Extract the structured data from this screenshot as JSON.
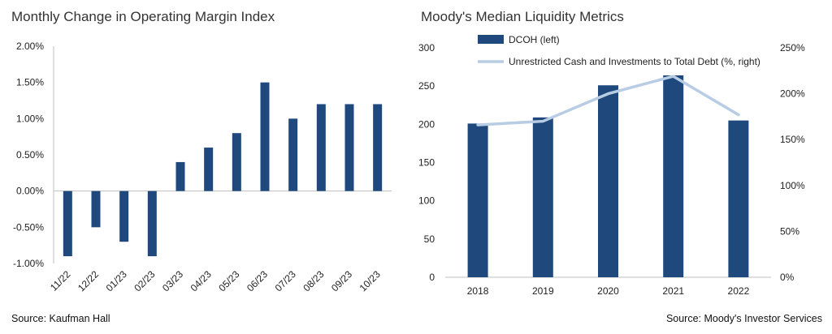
{
  "left_chart": {
    "title": "Monthly Change in Operating Margin Index",
    "source": "Source: Kaufman Hall"
  },
  "right_chart": {
    "title": "Moody's Median Liquidity Metrics",
    "source": "Source: Moody's Investor Services"
  },
  "colors": {
    "bar": "#1f497d",
    "line": "#b8cce4",
    "axis": "#bfbfbf"
  },
  "chart_data": [
    {
      "type": "bar",
      "title": "Monthly Change in Operating Margin Index",
      "categories": [
        "11/22",
        "12/22",
        "01/23",
        "02/23",
        "03/23",
        "04/23",
        "05/23",
        "06/23",
        "07/23",
        "08/23",
        "09/23",
        "10/23"
      ],
      "values": [
        -0.9,
        -0.5,
        -0.7,
        -0.9,
        0.4,
        0.6,
        0.8,
        1.5,
        1.0,
        1.2,
        1.2,
        1.2
      ],
      "unit": "%",
      "ylim": [
        -1.0,
        2.0
      ],
      "yticks": [
        "2.00%",
        "1.50%",
        "1.00%",
        "0.50%",
        "0.00%",
        "-0.50%",
        "-1.00%"
      ],
      "ytick_values": [
        2.0,
        1.5,
        1.0,
        0.5,
        0.0,
        -0.5,
        -1.0
      ],
      "grid": false
    },
    {
      "type": "bar+line",
      "title": "Moody's Median Liquidity Metrics",
      "categories": [
        "2018",
        "2019",
        "2020",
        "2021",
        "2022"
      ],
      "series": [
        {
          "name": "DCOH (left)",
          "kind": "bar",
          "axis": "left",
          "values": [
            201,
            209,
            251,
            264,
            205
          ]
        },
        {
          "name": "Unrestricted Cash and Investments to Total Debt (%, right)",
          "kind": "line",
          "axis": "right",
          "values": [
            166,
            170,
            200,
            219,
            177
          ]
        }
      ],
      "y_left": {
        "lim": [
          0,
          300
        ],
        "ticks": [
          "0",
          "50",
          "100",
          "150",
          "200",
          "250",
          "300"
        ],
        "tick_values": [
          0,
          50,
          100,
          150,
          200,
          250,
          300
        ]
      },
      "y_right": {
        "lim": [
          0,
          250
        ],
        "ticks": [
          "0%",
          "50%",
          "100%",
          "150%",
          "200%",
          "250%"
        ],
        "tick_values": [
          0,
          50,
          100,
          150,
          200,
          250
        ]
      },
      "legend": "top",
      "grid": false
    }
  ]
}
